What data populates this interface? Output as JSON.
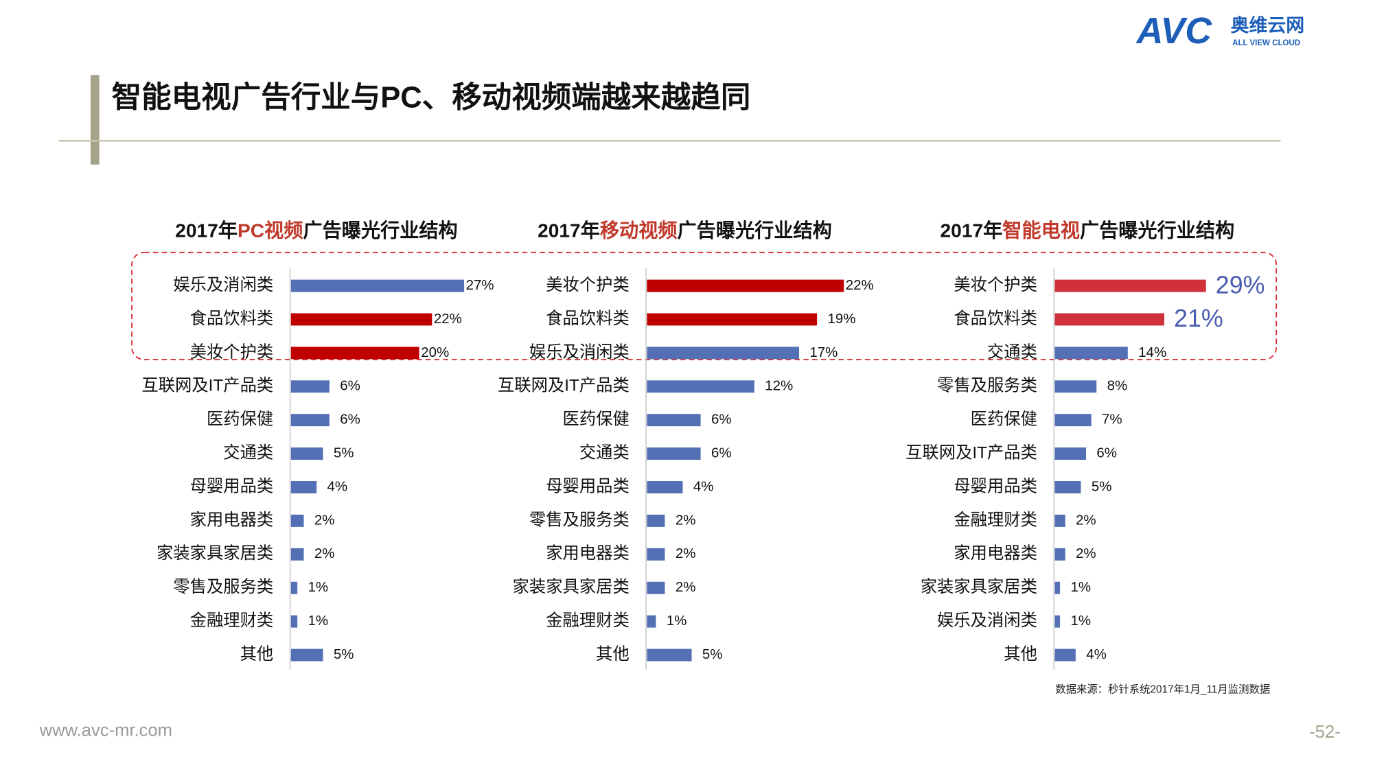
{
  "header": {
    "title": "智能电视广告行业与PC、移动视频端越来越趋同",
    "logo": "AVC",
    "logo_cn": "奥维云网",
    "logo_en": "ALL VIEW CLOUD"
  },
  "chart_data": [
    {
      "type": "bar",
      "title": "2017年PC视频广告曝光行业结构",
      "title_highlight": "PC视频",
      "categories": [
        "娱乐及消闲类",
        "食品饮料类",
        "美妆个护类",
        "互联网及IT产品类",
        "医药保健",
        "交通类",
        "母婴用品类",
        "家用电器类",
        "家装家具家居类",
        "零售及服务类",
        "金融理财类",
        "其他"
      ],
      "values": [
        27,
        22,
        20,
        6,
        6,
        5,
        4,
        2,
        2,
        1,
        1,
        5
      ],
      "value_labels": [
        "27%",
        "22%",
        "20%",
        "6%",
        "6%",
        "5%",
        "4%",
        "2%",
        "2%",
        "1%",
        "1%",
        "5%"
      ],
      "colors": [
        "#5470b4",
        "#c00000",
        "#c00000",
        "#5470b4",
        "#5470b4",
        "#5470b4",
        "#5470b4",
        "#5470b4",
        "#5470b4",
        "#5470b4",
        "#5470b4",
        "#5470b4"
      ]
    },
    {
      "type": "bar",
      "title": "2017年移动视频广告曝光行业结构",
      "title_highlight": "移动视频",
      "categories": [
        "美妆个护类",
        "食品饮料类",
        "娱乐及消闲类",
        "互联网及IT产品类",
        "医药保健",
        "交通类",
        "母婴用品类",
        "零售及服务类",
        "家用电器类",
        "家装家具家居类",
        "金融理财类",
        "其他"
      ],
      "values": [
        22,
        19,
        17,
        12,
        6,
        6,
        4,
        2,
        2,
        2,
        1,
        5
      ],
      "value_labels": [
        "22%",
        "19%",
        "17%",
        "12%",
        "6%",
        "6%",
        "4%",
        "2%",
        "2%",
        "2%",
        "1%",
        "5%"
      ],
      "colors": [
        "#c00000",
        "#c00000",
        "#5470b4",
        "#5470b4",
        "#5470b4",
        "#5470b4",
        "#5470b4",
        "#5470b4",
        "#5470b4",
        "#5470b4",
        "#5470b4",
        "#5470b4"
      ]
    },
    {
      "type": "bar",
      "title": "2017年智能电视广告曝光行业结构",
      "title_highlight": "智能电视",
      "categories": [
        "美妆个护类",
        "食品饮料类",
        "交通类",
        "零售及服务类",
        "医药保健",
        "互联网及IT产品类",
        "母婴用品类",
        "金融理财类",
        "家用电器类",
        "家装家具家居类",
        "娱乐及消闲类",
        "其他"
      ],
      "values": [
        29,
        21,
        14,
        8,
        7,
        6,
        5,
        2,
        2,
        1,
        1,
        4
      ],
      "value_labels": [
        "29%",
        "21%",
        "14%",
        "8%",
        "7%",
        "6%",
        "5%",
        "2%",
        "2%",
        "1%",
        "1%",
        "4%"
      ],
      "colors": [
        "#d0313a",
        "#d0313a",
        "#5470b4",
        "#5470b4",
        "#5470b4",
        "#5470b4",
        "#5470b4",
        "#5470b4",
        "#5470b4",
        "#5470b4",
        "#5470b4",
        "#5470b4"
      ],
      "emphasized_labels": 2
    }
  ],
  "source": "数据来源：秒针系统2017年1月_11月监测数据",
  "footer": {
    "website": "www.avc-mr.com",
    "page": "-52-"
  }
}
